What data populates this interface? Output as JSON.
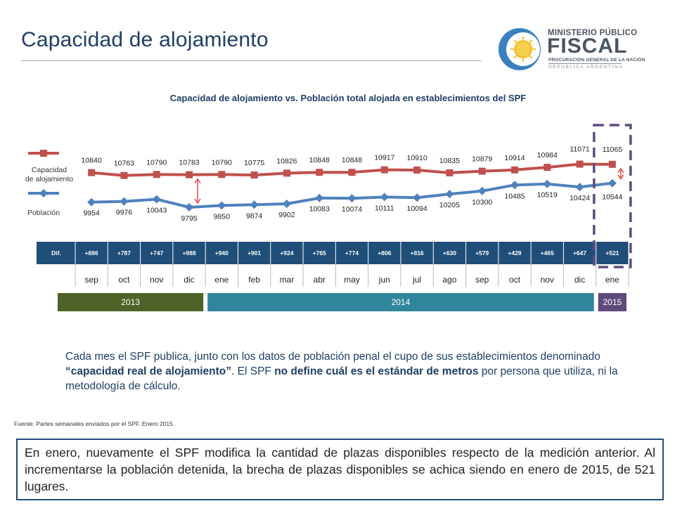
{
  "page": {
    "title": "Capacidad de alojamiento",
    "description": {
      "part1": "Cada mes el SPF publica, junto con los datos de población penal el cupo de sus establecimientos denominado ",
      "bold1": "“capacidad real de alojamiento”",
      "part2": ". El SPF ",
      "bold2": "no define cuál es el estándar de metros",
      "part3": " por persona que utiliza, ni la metodología de cálculo."
    },
    "source": "Fuente: Partes semanales enviados por el SPF. Enero 2015.",
    "note": "En enero, nuevamente el SPF modifica la cantidad de plazas disponibles respecto de la medición anterior. Al incrementarse la población detenida, la brecha de plazas disponibles se achica siendo en enero de 2015, de 521 lugares."
  },
  "logo": {
    "line1": "MINISTERIO PÚBLICO",
    "line2": "FISCAL",
    "line3": "PROCURACIÓN GENERAL DE LA NACIÓN",
    "line4": "REPÚBLICA ARGENTINA"
  },
  "chart_data": {
    "type": "line",
    "title": "Capacidad de alojamiento vs. Población total alojada en establecimientos del SPF",
    "categories": [
      "sep",
      "oct",
      "nov",
      "dic",
      "ene",
      "feb",
      "mar",
      "abr",
      "may",
      "jun",
      "jul",
      "ago",
      "sep",
      "oct",
      "nov",
      "dic",
      "ene"
    ],
    "series": [
      {
        "name": "Capacidad de alojamiento",
        "color": "#c0504d",
        "values": [
          10840,
          10763,
          10790,
          10783,
          10790,
          10775,
          10826,
          10848,
          10848,
          10917,
          10910,
          10835,
          10879,
          10914,
          10984,
          11071,
          11065
        ]
      },
      {
        "name": "Población",
        "color": "#4f81bd",
        "values": [
          9954,
          9976,
          10043,
          9795,
          9850,
          9874,
          9902,
          10083,
          10074,
          10111,
          10094,
          10205,
          10300,
          10485,
          10519,
          10424,
          10544
        ]
      }
    ],
    "diff": {
      "label": "Dif.",
      "values": [
        "+886",
        "+787",
        "+747",
        "+988",
        "+940",
        "+901",
        "+924",
        "+765",
        "+774",
        "+806",
        "+816",
        "+630",
        "+579",
        "+429",
        "+465",
        "+647",
        "+521"
      ]
    },
    "years": [
      {
        "label": "2013",
        "start": 0,
        "end": 3,
        "color": "#4f6228"
      },
      {
        "label": "2014",
        "start": 4,
        "end": 15,
        "color": "#31859c"
      },
      {
        "label": "2015",
        "start": 16,
        "end": 16,
        "color": "#604a7b"
      }
    ],
    "highlight_colors": {
      "gap_arrow": "#e04848",
      "dashed_box": "#604a7b",
      "diff_bg": "#1f4e79"
    }
  }
}
